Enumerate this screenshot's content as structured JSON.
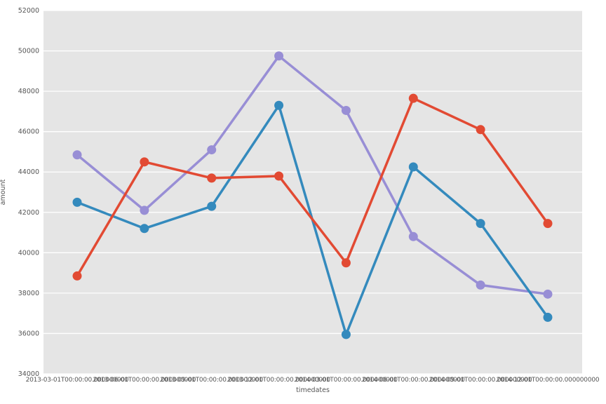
{
  "figure": {
    "background": "#ffffff",
    "plot_background": "#e5e5e5",
    "grid_color": "#ffffff",
    "tick_text_color": "#555555"
  },
  "chart_data": {
    "type": "line",
    "title": "",
    "xlabel": "timedates",
    "ylabel": "amount",
    "ylim": [
      34000,
      52000
    ],
    "y_ticks": [
      34000,
      36000,
      38000,
      40000,
      42000,
      44000,
      46000,
      48000,
      50000,
      52000
    ],
    "x_tick_labels": [
      "2013-03-01T00:00:00.000000000",
      "2013-06-01T00:00:00.000000000",
      "2013-09-01T00:00:00.000000000",
      "2013-12-01T00:00:00.000000000",
      "2014-03-01T00:00:00.000000000",
      "2014-06-01T00:00:00.000000000",
      "2014-09-01T00:00:00.000000000",
      "2014-12-01T00:00:00.000000000"
    ],
    "grid": "horizontal-only",
    "legend": "none",
    "marker": "circle",
    "series": [
      {
        "name": "series-purple",
        "color": "#988ed5",
        "values": [
          44850,
          42100,
          45100,
          49750,
          47050,
          40800,
          38400,
          37950
        ]
      },
      {
        "name": "series-blue",
        "color": "#348abd",
        "values": [
          42500,
          41200,
          42300,
          47300,
          35950,
          44250,
          41450,
          36800
        ]
      },
      {
        "name": "series-red",
        "color": "#e24a33",
        "values": [
          38850,
          44500,
          43700,
          43800,
          39500,
          47650,
          46100,
          41450
        ]
      }
    ]
  }
}
